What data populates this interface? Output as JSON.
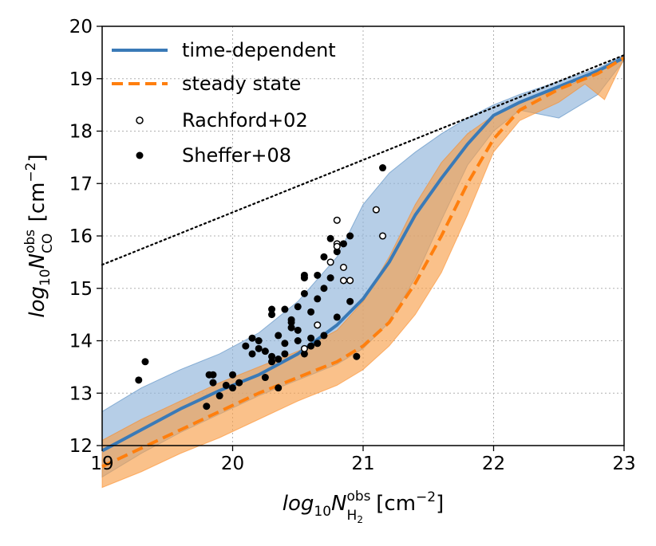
{
  "chart_data": {
    "type": "line",
    "xlim": [
      19,
      23
    ],
    "ylim": [
      12,
      20
    ],
    "grid": true,
    "x_ticks": [
      "19",
      "20",
      "21",
      "22",
      "23"
    ],
    "y_ticks": [
      "12",
      "13",
      "14",
      "15",
      "16",
      "17",
      "18",
      "19",
      "20"
    ],
    "xlabel": {
      "base": "log",
      "sub1": "10",
      "sym": "N",
      "sup": "obs",
      "sub2": "H",
      "sub2b": "2",
      "units": " [cm",
      "units_sup": "−2",
      "units_end": "]"
    },
    "ylabel": {
      "base": "log",
      "sub1": "10",
      "sym": "N",
      "sup": "obs",
      "sub2": "CO",
      "units": " [cm",
      "units_sup": "−2",
      "units_end": "]"
    },
    "legend": {
      "placement": "top-left",
      "entries": [
        {
          "label": "time-dependent",
          "style": "solid-line",
          "color": "#3a7ab7"
        },
        {
          "label": "steady state",
          "style": "dashed-line",
          "color": "#ff7f0e"
        },
        {
          "label": "Rachford+02",
          "style": "open-circle",
          "color": "#000000"
        },
        {
          "label": "Sheffer+08",
          "style": "filled-circle",
          "color": "#000000"
        }
      ]
    },
    "colors": {
      "blue_line": "#3a7ab7",
      "blue_band": "#8fb4da",
      "orange_line": "#ff7f0e",
      "orange_band": "#f7a04b",
      "points": "#000000"
    },
    "series": [
      {
        "name": "time-dependent",
        "x": [
          19.0,
          19.3,
          19.6,
          19.9,
          20.2,
          20.5,
          20.8,
          21.0,
          21.2,
          21.4,
          21.6,
          21.8,
          22.0,
          22.2,
          22.5,
          22.8,
          23.0
        ],
        "y": [
          11.9,
          12.3,
          12.7,
          13.05,
          13.35,
          13.75,
          14.3,
          14.8,
          15.5,
          16.4,
          17.1,
          17.75,
          18.3,
          18.55,
          18.85,
          19.15,
          19.4
        ]
      },
      {
        "name": "steady state",
        "x": [
          19.0,
          19.3,
          19.6,
          19.9,
          20.2,
          20.5,
          20.8,
          21.0,
          21.2,
          21.4,
          21.6,
          21.8,
          22.0,
          22.2,
          22.5,
          22.8,
          23.0
        ],
        "y": [
          11.6,
          11.95,
          12.3,
          12.65,
          13.0,
          13.3,
          13.6,
          13.9,
          14.35,
          15.1,
          16.0,
          17.0,
          17.85,
          18.4,
          18.8,
          19.1,
          19.4
        ]
      }
    ],
    "bands": [
      {
        "name": "time-dependent range",
        "x": [
          19.0,
          19.3,
          19.6,
          19.9,
          20.2,
          20.5,
          20.8,
          21.0,
          21.2,
          21.4,
          21.6,
          21.8,
          22.0,
          22.2,
          22.5,
          22.8,
          23.0
        ],
        "upper": [
          12.65,
          13.1,
          13.45,
          13.75,
          14.15,
          14.75,
          15.6,
          16.6,
          17.2,
          17.6,
          17.95,
          18.25,
          18.5,
          18.7,
          18.95,
          19.2,
          19.45
        ],
        "lower": [
          11.4,
          11.85,
          12.25,
          12.6,
          12.95,
          13.25,
          13.55,
          13.85,
          14.35,
          15.2,
          16.3,
          17.35,
          18.0,
          18.4,
          18.25,
          18.7,
          19.35
        ]
      },
      {
        "name": "steady state range",
        "x": [
          19.0,
          19.3,
          19.6,
          19.9,
          20.2,
          20.5,
          20.8,
          21.0,
          21.2,
          21.4,
          21.6,
          21.8,
          22.0,
          22.2,
          22.5,
          22.7,
          22.85,
          23.0
        ],
        "upper": [
          12.1,
          12.5,
          12.85,
          13.2,
          13.5,
          13.8,
          14.2,
          14.75,
          15.6,
          16.6,
          17.4,
          17.95,
          18.3,
          18.55,
          18.8,
          19.0,
          19.2,
          19.42
        ],
        "lower": [
          11.2,
          11.5,
          11.85,
          12.15,
          12.5,
          12.85,
          13.15,
          13.45,
          13.9,
          14.5,
          15.3,
          16.4,
          17.6,
          18.2,
          18.55,
          18.9,
          18.6,
          19.38
        ]
      }
    ],
    "reference_line": {
      "style": "dotted",
      "x": [
        19.0,
        23.0
      ],
      "y": [
        15.45,
        19.45
      ]
    },
    "rachford02": {
      "x": [
        20.55,
        20.65,
        20.75,
        20.8,
        20.85,
        20.9,
        20.85,
        20.8,
        21.1,
        21.15,
        20.8
      ],
      "y": [
        13.85,
        14.3,
        15.5,
        15.85,
        15.15,
        15.15,
        15.4,
        16.3,
        16.5,
        16.0,
        15.8
      ]
    },
    "sheffer08": {
      "x": [
        19.28,
        19.33,
        19.8,
        19.82,
        19.85,
        19.9,
        19.95,
        20.0,
        20.05,
        20.15,
        20.15,
        20.2,
        20.25,
        20.3,
        20.3,
        20.35,
        20.35,
        20.4,
        20.4,
        20.45,
        20.5,
        20.5,
        20.55,
        20.55,
        20.6,
        20.6,
        20.65,
        20.7,
        20.7,
        20.75,
        20.8,
        20.9,
        20.95,
        21.15,
        19.85,
        20.0,
        20.1,
        20.2,
        20.25,
        20.3,
        20.35,
        20.4,
        20.45,
        20.5,
        20.55,
        20.6,
        20.65,
        20.7,
        20.75,
        20.8,
        20.85,
        20.9,
        20.3,
        20.45,
        20.55,
        20.65
      ],
      "y": [
        13.25,
        13.6,
        12.75,
        13.35,
        13.2,
        12.95,
        13.15,
        13.1,
        13.2,
        13.75,
        14.05,
        13.85,
        13.3,
        13.6,
        14.5,
        13.1,
        13.65,
        13.95,
        14.6,
        14.25,
        14.65,
        14.0,
        15.2,
        14.9,
        14.55,
        13.9,
        14.8,
        15.6,
        14.1,
        15.2,
        14.45,
        14.75,
        13.7,
        17.3,
        13.35,
        13.35,
        13.9,
        14.0,
        13.8,
        14.6,
        14.1,
        13.75,
        14.35,
        14.2,
        13.75,
        14.05,
        13.95,
        15.0,
        15.95,
        15.7,
        15.85,
        16.0,
        13.7,
        14.4,
        15.25,
        15.25
      ]
    }
  }
}
